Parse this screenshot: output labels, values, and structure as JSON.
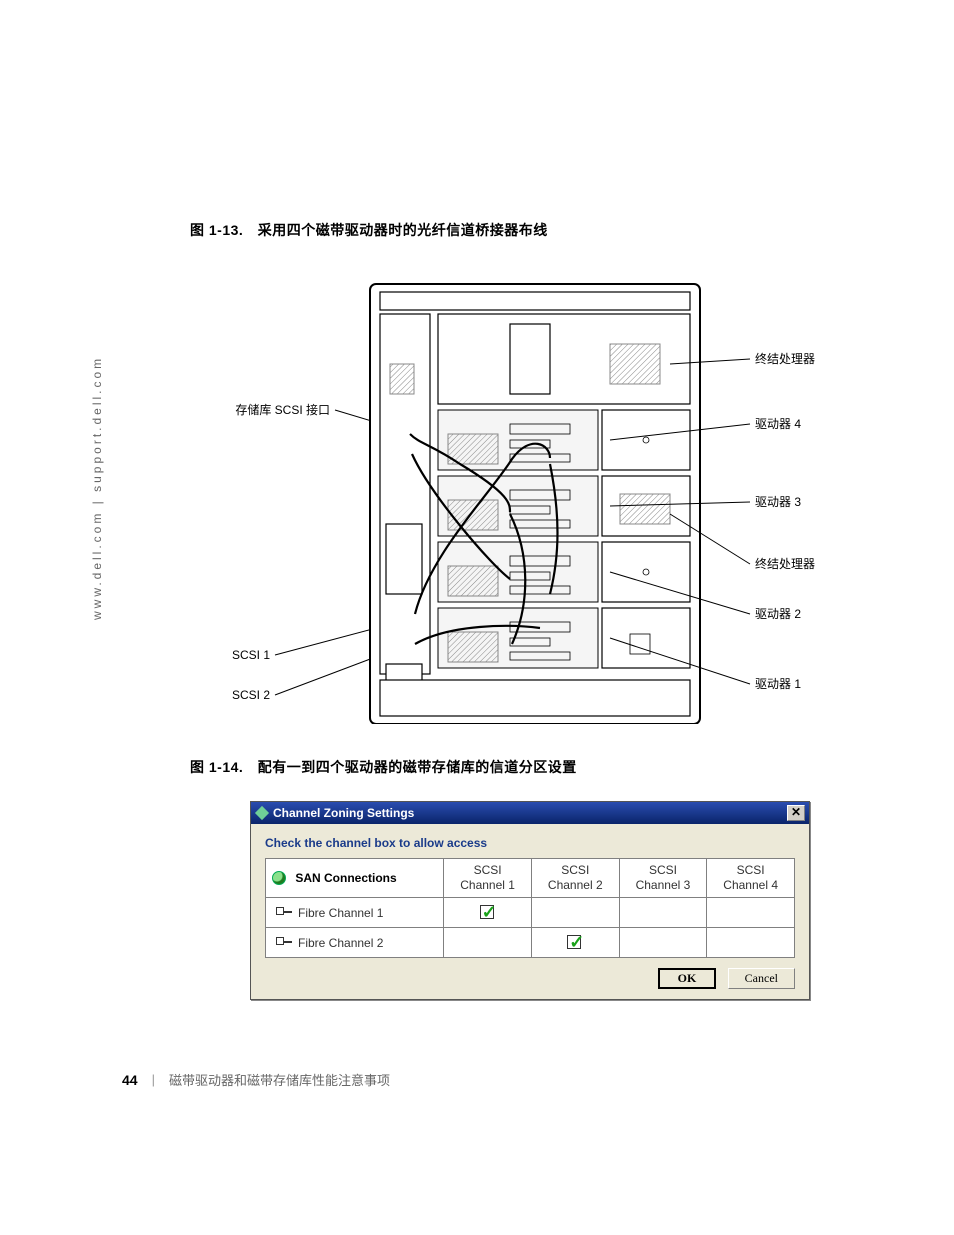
{
  "side_url": "www.dell.com | support.dell.com",
  "figure1": {
    "number": "图 1-13.",
    "caption": "采用四个磁带驱动器时的光纤信道桥接器布线",
    "labels_left": {
      "scsi_iface": "存储库 SCSI 接口",
      "scsi1": "SCSI 1",
      "scsi2": "SCSI 2"
    },
    "labels_right": {
      "terminator1": "终结处理器",
      "drive4": "驱动器 4",
      "drive3": "驱动器 3",
      "terminator2": "终结处理器",
      "drive2": "驱动器 2",
      "drive1": "驱动器 1"
    }
  },
  "figure2": {
    "number": "图 1-14.",
    "caption": "配有一到四个驱动器的磁带存储库的信道分区设置"
  },
  "dialog": {
    "title": "Channel Zoning Settings",
    "hint": "Check the channel box to allow access",
    "san_header": "SAN Connections",
    "col_line1": "SCSI",
    "cols": [
      "Channel 1",
      "Channel 2",
      "Channel 3",
      "Channel 4"
    ],
    "rows": [
      {
        "label": "Fibre Channel 1",
        "checks": [
          true,
          false,
          false,
          false
        ]
      },
      {
        "label": "Fibre Channel 2",
        "checks": [
          false,
          true,
          false,
          false
        ]
      }
    ],
    "ok": "OK",
    "cancel": "Cancel"
  },
  "footer": {
    "page": "44",
    "crumb": "磁带驱动器和磁带存储库性能注意事项"
  },
  "colors": {
    "titlebar_start": "#2a4db0",
    "titlebar_end": "#0a246a",
    "dialog_bg": "#ece9d8",
    "check_green": "#1aa21a",
    "link_blue": "#1a3b8a"
  }
}
